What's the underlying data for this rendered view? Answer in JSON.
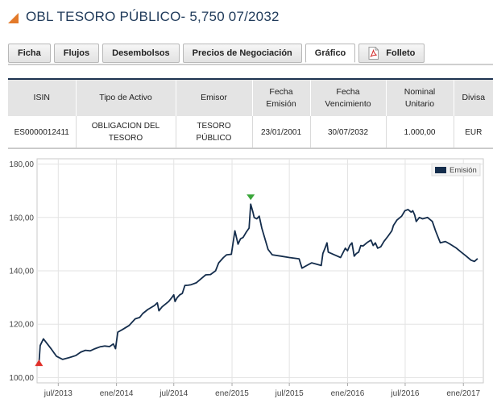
{
  "page": {
    "title": "OBL TESORO PÚBLICO- 5,750 07/2032"
  },
  "tabs": [
    {
      "label": "Ficha"
    },
    {
      "label": "Flujos"
    },
    {
      "label": "Desembolsos"
    },
    {
      "label": "Precios de Negociación"
    },
    {
      "label": "Gráfico"
    },
    {
      "label": "Folleto"
    }
  ],
  "table": {
    "headers": [
      [
        "ISIN"
      ],
      [
        "Tipo de Activo"
      ],
      [
        "Emisor"
      ],
      [
        "Fecha",
        "Emisión"
      ],
      [
        "Fecha",
        "Vencimiento"
      ],
      [
        "Nominal",
        "Unitario"
      ],
      [
        "Divisa"
      ]
    ],
    "row": [
      [
        "ES0000012411"
      ],
      [
        "OBLIGACION DEL",
        "TESORO"
      ],
      [
        "TESORO",
        "PÚBLICO"
      ],
      [
        "23/01/2001"
      ],
      [
        "30/07/2032"
      ],
      [
        "1.000,00"
      ],
      [
        "EUR"
      ]
    ]
  },
  "chart_data": {
    "type": "line",
    "legend_position": "top-right",
    "grid": true,
    "ylim": [
      98,
      182
    ],
    "y_ticks": [
      100,
      120,
      140,
      160,
      180
    ],
    "y_tick_labels": [
      "100,00",
      "120,00",
      "140,00",
      "160,00",
      "180,00"
    ],
    "x_range": [
      "2013-04-25",
      "2017-03-05"
    ],
    "x_ticks": [
      "2013-07-01",
      "2014-01-01",
      "2014-07-01",
      "2015-01-01",
      "2015-07-01",
      "2016-01-01",
      "2016-07-01",
      "2017-01-01"
    ],
    "x_tick_labels": [
      "jul/2013",
      "ene/2014",
      "jul/2014",
      "ene/2015",
      "jul/2015",
      "ene/2016",
      "jul/2016",
      "ene/2017"
    ],
    "series": [
      {
        "name": "Emisión",
        "color": "#142d4c",
        "points": [
          [
            "2013-05-01",
            105.5
          ],
          [
            "2013-05-05",
            112.0
          ],
          [
            "2013-05-15",
            114.5
          ],
          [
            "2013-05-25",
            113.0
          ],
          [
            "2013-06-10",
            110.5
          ],
          [
            "2013-06-25",
            108.0
          ],
          [
            "2013-07-15",
            106.8
          ],
          [
            "2013-08-05",
            107.5
          ],
          [
            "2013-08-25",
            108.2
          ],
          [
            "2013-09-10",
            109.5
          ],
          [
            "2013-09-25",
            110.2
          ],
          [
            "2013-10-10",
            110.0
          ],
          [
            "2013-10-25",
            110.8
          ],
          [
            "2013-11-10",
            111.5
          ],
          [
            "2013-11-25",
            111.8
          ],
          [
            "2013-12-10",
            111.6
          ],
          [
            "2013-12-22",
            112.6
          ],
          [
            "2013-12-29",
            110.8
          ],
          [
            "2014-01-05",
            117.0
          ],
          [
            "2014-01-20",
            118.0
          ],
          [
            "2014-02-10",
            119.5
          ],
          [
            "2014-03-01",
            122.0
          ],
          [
            "2014-03-15",
            122.5
          ],
          [
            "2014-03-25",
            124.0
          ],
          [
            "2014-04-10",
            125.5
          ],
          [
            "2014-05-01",
            127.0
          ],
          [
            "2014-05-10",
            128.0
          ],
          [
            "2014-05-15",
            125.0
          ],
          [
            "2014-05-25",
            126.5
          ],
          [
            "2014-06-15",
            128.5
          ],
          [
            "2014-06-25",
            130.0
          ],
          [
            "2014-07-01",
            131.0
          ],
          [
            "2014-07-05",
            128.5
          ],
          [
            "2014-07-12",
            130.0
          ],
          [
            "2014-07-20",
            131.0
          ],
          [
            "2014-07-28",
            131.5
          ],
          [
            "2014-08-05",
            134.5
          ],
          [
            "2014-08-15",
            134.6
          ],
          [
            "2014-08-25",
            134.8
          ],
          [
            "2014-09-10",
            135.5
          ],
          [
            "2014-09-25",
            137.0
          ],
          [
            "2014-10-10",
            138.5
          ],
          [
            "2014-10-25",
            138.6
          ],
          [
            "2014-11-10",
            140.0
          ],
          [
            "2014-11-20",
            143.0
          ],
          [
            "2014-12-05",
            145.0
          ],
          [
            "2014-12-15",
            146.0
          ],
          [
            "2014-12-30",
            146.2
          ],
          [
            "2015-01-10",
            155.0
          ],
          [
            "2015-01-20",
            150.0
          ],
          [
            "2015-01-28",
            152.0
          ],
          [
            "2015-02-05",
            152.5
          ],
          [
            "2015-02-15",
            154.5
          ],
          [
            "2015-02-24",
            156.0
          ],
          [
            "2015-03-01",
            165.0
          ],
          [
            "2015-03-08",
            162.0
          ],
          [
            "2015-03-12",
            160.0
          ],
          [
            "2015-03-20",
            159.5
          ],
          [
            "2015-03-28",
            160.5
          ],
          [
            "2015-04-05",
            156.0
          ],
          [
            "2015-04-15",
            152.0
          ],
          [
            "2015-04-25",
            148.0
          ],
          [
            "2015-05-08",
            146.0
          ],
          [
            "2015-06-05",
            145.5
          ],
          [
            "2015-07-01",
            145.0
          ],
          [
            "2015-08-01",
            144.5
          ],
          [
            "2015-08-10",
            141.0
          ],
          [
            "2015-08-25",
            142.0
          ],
          [
            "2015-09-10",
            143.0
          ],
          [
            "2015-09-25",
            142.5
          ],
          [
            "2015-10-10",
            142.0
          ],
          [
            "2015-10-15",
            146.5
          ],
          [
            "2015-10-22",
            148.5
          ],
          [
            "2015-10-28",
            150.5
          ],
          [
            "2015-11-01",
            147.0
          ],
          [
            "2015-11-20",
            146.0
          ],
          [
            "2015-12-10",
            145.0
          ],
          [
            "2015-12-25",
            148.5
          ],
          [
            "2016-01-01",
            147.5
          ],
          [
            "2016-01-08",
            149.5
          ],
          [
            "2016-01-15",
            150.5
          ],
          [
            "2016-01-22",
            145.5
          ],
          [
            "2016-01-29",
            146.5
          ],
          [
            "2016-02-05",
            147.0
          ],
          [
            "2016-02-12",
            149.5
          ],
          [
            "2016-02-19",
            149.3
          ],
          [
            "2016-02-26",
            150.0
          ],
          [
            "2016-03-04",
            150.7
          ],
          [
            "2016-03-15",
            151.5
          ],
          [
            "2016-03-22",
            149.5
          ],
          [
            "2016-03-29",
            150.5
          ],
          [
            "2016-04-05",
            148.5
          ],
          [
            "2016-04-15",
            149.0
          ],
          [
            "2016-04-25",
            151.0
          ],
          [
            "2016-05-08",
            153.0
          ],
          [
            "2016-05-20",
            155.0
          ],
          [
            "2016-05-25",
            157.0
          ],
          [
            "2016-06-05",
            159.0
          ],
          [
            "2016-06-20",
            160.5
          ],
          [
            "2016-06-30",
            162.5
          ],
          [
            "2016-07-10",
            163.0
          ],
          [
            "2016-07-20",
            162.0
          ],
          [
            "2016-07-25",
            162.5
          ],
          [
            "2016-07-31",
            161.0
          ],
          [
            "2016-08-05",
            158.5
          ],
          [
            "2016-08-15",
            160.0
          ],
          [
            "2016-08-25",
            159.5
          ],
          [
            "2016-09-10",
            160.0
          ],
          [
            "2016-09-25",
            158.5
          ],
          [
            "2016-10-05",
            155.0
          ],
          [
            "2016-10-20",
            150.5
          ],
          [
            "2016-11-05",
            151.0
          ],
          [
            "2016-11-20",
            150.0
          ],
          [
            "2016-12-10",
            148.5
          ],
          [
            "2016-12-25",
            147.0
          ],
          [
            "2017-01-10",
            145.5
          ],
          [
            "2017-01-25",
            144.0
          ],
          [
            "2017-02-05",
            143.5
          ],
          [
            "2017-02-15",
            144.6
          ]
        ]
      }
    ],
    "markers": [
      {
        "type": "min",
        "shape": "triangle-up",
        "color": "#e0302a",
        "date": "2013-05-01",
        "value": 105.5
      },
      {
        "type": "max",
        "shape": "triangle-down",
        "color": "#3aa63a",
        "date": "2015-03-01",
        "value": 165.0
      }
    ]
  }
}
